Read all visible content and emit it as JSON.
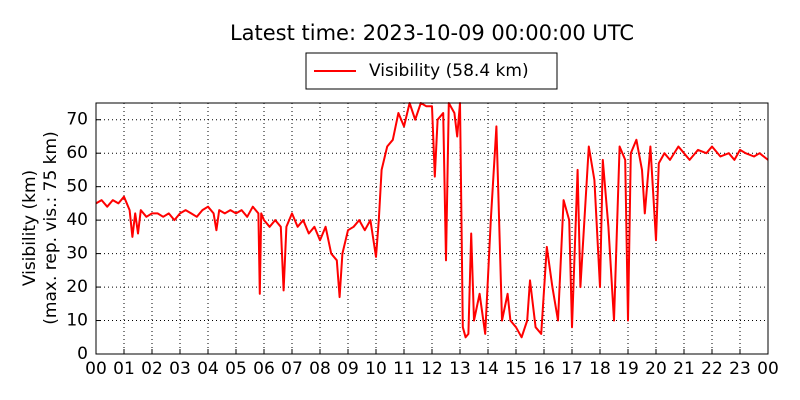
{
  "chart_data": {
    "type": "line",
    "title": "Latest time: 2023-10-09 00:00:00 UTC",
    "ylabel": [
      "Visibility (km)",
      "(max. rep. vis.: 75 km)"
    ],
    "legend": "top",
    "grid": true,
    "xlim": [
      0,
      24
    ],
    "ylim": [
      0,
      75
    ],
    "xticks": [
      {
        "value": 0,
        "label": "00"
      },
      {
        "value": 1,
        "label": "01"
      },
      {
        "value": 2,
        "label": "02"
      },
      {
        "value": 3,
        "label": "03"
      },
      {
        "value": 4,
        "label": "04"
      },
      {
        "value": 5,
        "label": "05"
      },
      {
        "value": 6,
        "label": "06"
      },
      {
        "value": 7,
        "label": "07"
      },
      {
        "value": 8,
        "label": "08"
      },
      {
        "value": 9,
        "label": "09"
      },
      {
        "value": 10,
        "label": "10"
      },
      {
        "value": 11,
        "label": "11"
      },
      {
        "value": 12,
        "label": "12"
      },
      {
        "value": 13,
        "label": "13"
      },
      {
        "value": 14,
        "label": "14"
      },
      {
        "value": 15,
        "label": "15"
      },
      {
        "value": 16,
        "label": "16"
      },
      {
        "value": 17,
        "label": "17"
      },
      {
        "value": 18,
        "label": "18"
      },
      {
        "value": 19,
        "label": "19"
      },
      {
        "value": 20,
        "label": "20"
      },
      {
        "value": 21,
        "label": "21"
      },
      {
        "value": 22,
        "label": "22"
      },
      {
        "value": 23,
        "label": "23"
      },
      {
        "value": 24,
        "label": "00"
      }
    ],
    "yticks": [
      0,
      10,
      20,
      30,
      40,
      50,
      60,
      70
    ],
    "x": [
      0,
      0.2,
      0.4,
      0.6,
      0.8,
      1.0,
      1.2,
      1.3,
      1.4,
      1.5,
      1.6,
      1.8,
      2.0,
      2.2,
      2.4,
      2.6,
      2.8,
      3.0,
      3.2,
      3.4,
      3.6,
      3.8,
      4.0,
      4.2,
      4.3,
      4.4,
      4.6,
      4.8,
      5.0,
      5.2,
      5.4,
      5.6,
      5.8,
      5.85,
      5.9,
      6.0,
      6.2,
      6.4,
      6.6,
      6.7,
      6.8,
      7.0,
      7.2,
      7.4,
      7.6,
      7.8,
      8.0,
      8.2,
      8.4,
      8.6,
      8.7,
      8.8,
      9.0,
      9.2,
      9.4,
      9.6,
      9.8,
      10.0,
      10.1,
      10.2,
      10.4,
      10.6,
      10.8,
      11.0,
      11.2,
      11.4,
      11.6,
      11.8,
      12.0,
      12.1,
      12.2,
      12.4,
      12.5,
      12.6,
      12.8,
      12.9,
      13.0,
      13.1,
      13.2,
      13.3,
      13.4,
      13.5,
      13.7,
      13.9,
      14.1,
      14.3,
      14.5,
      14.7,
      14.8,
      15.0,
      15.2,
      15.4,
      15.5,
      15.7,
      15.9,
      16.1,
      16.3,
      16.5,
      16.7,
      16.9,
      17.0,
      17.2,
      17.3,
      17.6,
      17.8,
      18.0,
      18.1,
      18.3,
      18.5,
      18.7,
      18.9,
      19.0,
      19.1,
      19.3,
      19.5,
      19.6,
      19.8,
      20.0,
      20.1,
      20.3,
      20.5,
      20.8,
      21.0,
      21.2,
      21.5,
      21.8,
      22.0,
      22.3,
      22.6,
      22.8,
      23.0,
      23.2,
      23.5,
      23.7,
      24.0
    ],
    "series": [
      {
        "name": "Visibility (58.4 km)",
        "color": "#ff0000",
        "values": [
          45,
          46,
          44,
          46,
          45,
          47,
          43,
          35,
          42,
          36,
          43,
          41,
          42,
          42,
          41,
          42,
          40,
          42,
          43,
          42,
          41,
          43,
          44,
          42,
          37,
          43,
          42,
          43,
          42,
          43,
          41,
          44,
          42,
          18,
          42,
          40,
          38,
          40,
          38,
          19,
          38,
          42,
          38,
          40,
          36,
          38,
          34,
          38,
          30,
          28,
          17,
          30,
          37,
          38,
          40,
          37,
          40,
          29,
          40,
          55,
          62,
          64,
          72,
          68,
          75,
          70,
          75,
          74,
          74,
          53,
          70,
          72,
          28,
          75,
          72,
          65,
          75,
          8,
          5,
          6,
          36,
          10,
          18,
          6,
          40,
          68,
          10,
          18,
          10,
          8,
          5,
          10,
          22,
          8,
          6,
          32,
          20,
          10,
          46,
          40,
          8,
          55,
          20,
          62,
          52,
          20,
          58,
          38,
          10,
          62,
          58,
          10,
          60,
          64,
          55,
          42,
          62,
          34,
          57,
          60,
          58,
          62,
          60,
          58,
          61,
          60,
          62,
          59,
          60,
          58,
          61,
          60,
          59,
          60,
          58
        ]
      }
    ]
  }
}
